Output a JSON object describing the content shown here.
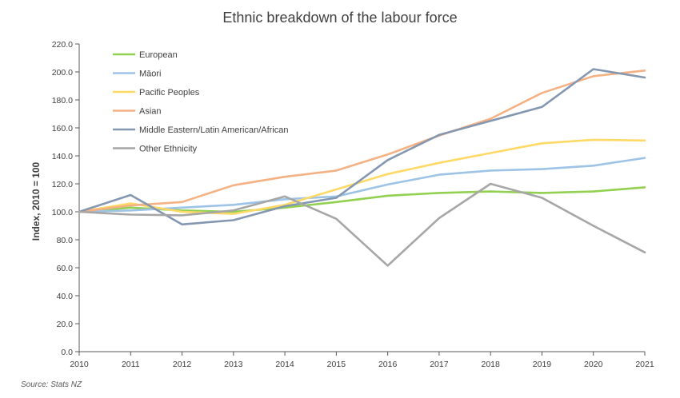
{
  "chart_data": {
    "type": "line",
    "title": "Ethnic breakdown of the labour force",
    "xlabel": "",
    "ylabel": "Index, 2010 = 100",
    "ylim": [
      0,
      220
    ],
    "ytick_step": 20,
    "ytick_labels": [
      "0.0",
      "20.0",
      "40.0",
      "60.0",
      "80.0",
      "100.0",
      "120.0",
      "140.0",
      "160.0",
      "180.0",
      "200.0",
      "220.0"
    ],
    "categories": [
      "2010",
      "2011",
      "2012",
      "2013",
      "2014",
      "2015",
      "2016",
      "2017",
      "2018",
      "2019",
      "2020",
      "2021"
    ],
    "legend_position": "top-left",
    "series": [
      {
        "name": "European",
        "color": "#92d050",
        "values": [
          100,
          103,
          101,
          100,
          103,
          107,
          111.5,
          113.5,
          114.5,
          113.5,
          114.5,
          117.5
        ]
      },
      {
        "name": "Māori",
        "color": "#9dc3e6",
        "values": [
          100,
          101,
          103,
          105,
          109,
          111,
          119.5,
          126.5,
          129.5,
          130.5,
          133,
          138.5
        ]
      },
      {
        "name": "Pacific Peoples",
        "color": "#ffd966",
        "values": [
          100,
          106,
          100,
          98.5,
          105,
          116,
          127,
          135,
          142,
          149,
          151.5,
          151
        ]
      },
      {
        "name": "Asian",
        "color": "#f4b183",
        "values": [
          100,
          104.5,
          107,
          119,
          125,
          129.5,
          141,
          154.5,
          166.5,
          185,
          197,
          201
        ]
      },
      {
        "name": "Middle Eastern/Latin American/African",
        "color": "#8497b0",
        "values": [
          100,
          112,
          91,
          94,
          104,
          110,
          137,
          155,
          165,
          175,
          202,
          196
        ]
      },
      {
        "name": "Other Ethnicity",
        "color": "#a6a6a6",
        "values": [
          100,
          98,
          97.5,
          101,
          111,
          95,
          61.5,
          95.5,
          120,
          110,
          90,
          71
        ]
      }
    ]
  },
  "source": "Source: Stats NZ"
}
